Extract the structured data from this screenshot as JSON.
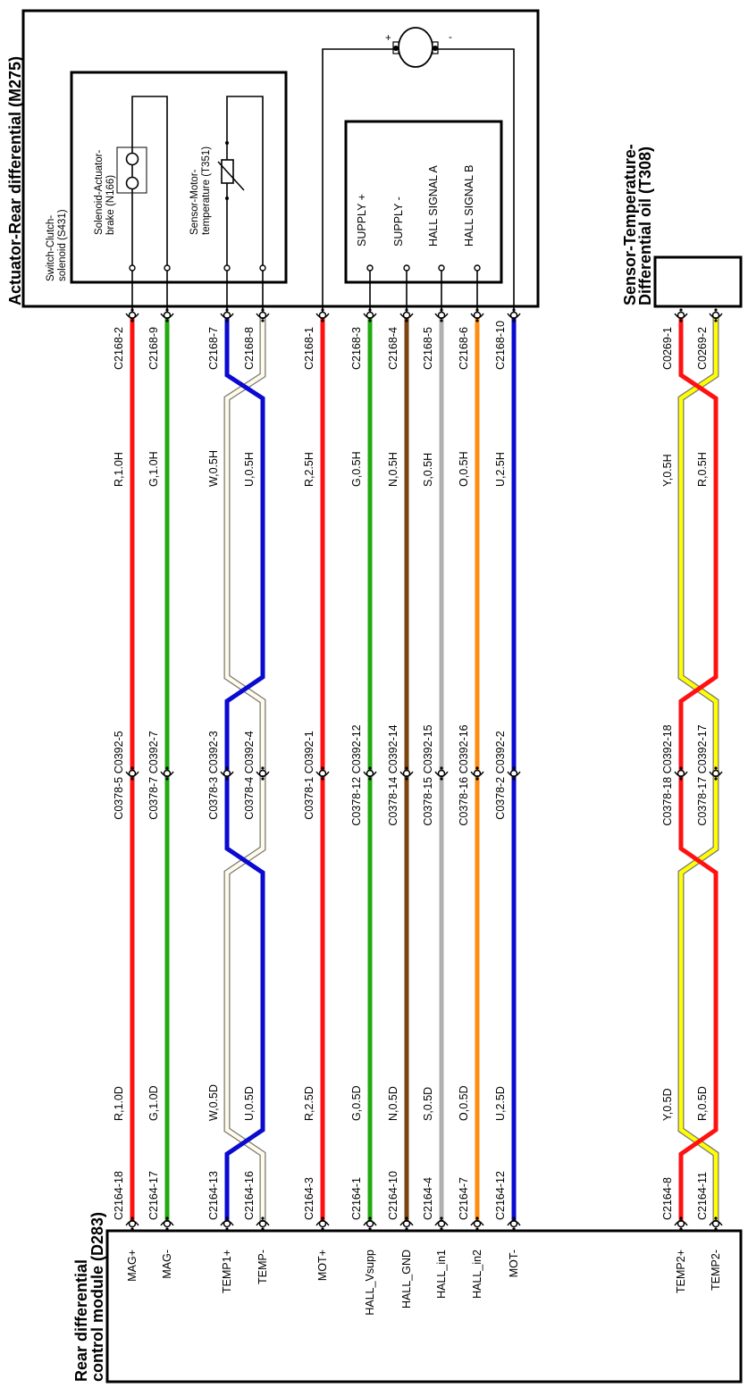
{
  "actuator": {
    "title": "Actuator-Rear differential (M275)",
    "switch_label_1": "Switch-Clutch-",
    "switch_label_2": "solenoid (S431)",
    "solenoid_label_1": "Solenoid-Actuator-",
    "solenoid_label_2": "brake (N166)",
    "sensor_label_1": "Sensor-Motor-",
    "sensor_label_2": "temperature (T351)",
    "motor_plus": "+",
    "motor_minus": "-",
    "hall_pins": [
      "SUPPLY +",
      "SUPPLY -",
      "HALL SIGNAL A",
      "HALL SIGNAL B"
    ]
  },
  "oil_sensor": {
    "title_1": "Sensor-Temperature-",
    "title_2": "Differential oil (T308)"
  },
  "control_module": {
    "title_1": "Rear differential",
    "title_2": "control module (D283)"
  },
  "wires": [
    {
      "top_conn": "C2168-2",
      "top_gauge": "R,1.0H",
      "inline_conn": "C0378-5 C0392-5",
      "bottom_gauge": "R,1.0D",
      "bottom_conn": "C2164-18",
      "pin": "MAG+",
      "color": "#ff1111"
    },
    {
      "top_conn": "C2168-9",
      "top_gauge": "G,1.0H",
      "inline_conn": "C0378-7 C0392-7",
      "bottom_gauge": "G,1.0D",
      "bottom_conn": "C2164-17",
      "pin": "MAG-",
      "color": "#22aa11"
    },
    {
      "top_conn": "C2168-7",
      "top_gauge": "W,0.5H",
      "inline_conn": "C0378-3 C0392-3",
      "bottom_gauge": "W,0.5D",
      "bottom_conn": "C2164-13",
      "pin": "TEMP1+",
      "color": "#0a0ad0"
    },
    {
      "top_conn": "C2168-8",
      "top_gauge": "U,0.5H",
      "inline_conn": "C0378-4 C0392-4",
      "bottom_gauge": "U,0.5D",
      "bottom_conn": "C2164-16",
      "pin": "TEMP-",
      "color": "#fffbe8"
    },
    {
      "top_conn": "C2168-1",
      "top_gauge": "R,2.5H",
      "inline_conn": "C0378-1 C0392-1",
      "bottom_gauge": "R,2.5D",
      "bottom_conn": "C2164-3",
      "pin": "MOT+",
      "color": "#ff1111"
    },
    {
      "top_conn": "C2168-3",
      "top_gauge": "G,0.5H",
      "inline_conn": "C0378-12 C0392-12",
      "bottom_gauge": "G,0.5D",
      "bottom_conn": "C2164-1",
      "pin": "HALL_Vsupp",
      "color": "#22aa11"
    },
    {
      "top_conn": "C2168-4",
      "top_gauge": "N,0.5H",
      "inline_conn": "C0378-14 C0392-14",
      "bottom_gauge": "N,0.5D",
      "bottom_conn": "C2164-10",
      "pin": "HALL_GND",
      "color": "#7a4510"
    },
    {
      "top_conn": "C2168-5",
      "top_gauge": "S,0.5H",
      "inline_conn": "C0378-15 C0392-15",
      "bottom_gauge": "S,0.5D",
      "bottom_conn": "C2164-4",
      "pin": "HALL_in1",
      "color": "#b0b0b0"
    },
    {
      "top_conn": "C2168-6",
      "top_gauge": "O,0.5H",
      "inline_conn": "C0378-16 C0392-16",
      "bottom_gauge": "O,0.5D",
      "bottom_conn": "C2164-7",
      "pin": "HALL_in2",
      "color": "#ff8c10"
    },
    {
      "top_conn": "C2168-10",
      "top_gauge": "U,2.5H",
      "inline_conn": "C0378-2 C0392-2",
      "bottom_gauge": "U,2.5D",
      "bottom_conn": "C2164-12",
      "pin": "MOT-",
      "color": "#0a0ad0"
    },
    {
      "top_conn": "C0269-1",
      "top_gauge": "Y,0.5H",
      "inline_conn": "C0378-18 C0392-18",
      "bottom_gauge": "Y,0.5D",
      "bottom_conn": "C2164-8",
      "pin": "TEMP2+",
      "color": "#ff1111"
    },
    {
      "top_conn": "C0269-2",
      "top_gauge": "R,0.5H",
      "inline_conn": "C0378-17 C0392-17",
      "bottom_gauge": "R,0.5D",
      "bottom_conn": "C2164-11",
      "pin": "TEMP2-",
      "color": "#ffff00"
    }
  ],
  "twisted_pairs": [
    {
      "wires": [
        2,
        3
      ],
      "colors": [
        "#0a0ad0",
        "#fffbe8"
      ]
    },
    {
      "wires": [
        10,
        11
      ],
      "colors": [
        "#ff1111",
        "#ffff00"
      ]
    }
  ]
}
